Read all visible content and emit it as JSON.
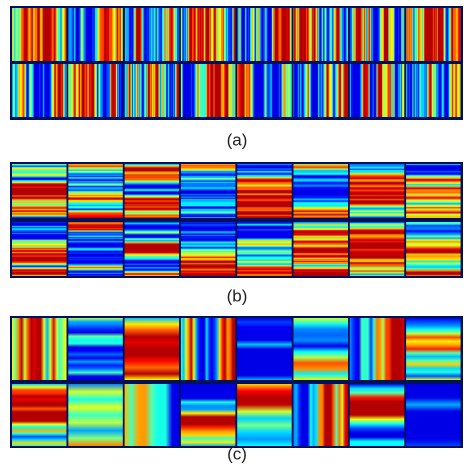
{
  "panels": [
    {
      "label": "(a)"
    },
    {
      "label": "(b)"
    },
    {
      "label": "(c)"
    }
  ]
}
